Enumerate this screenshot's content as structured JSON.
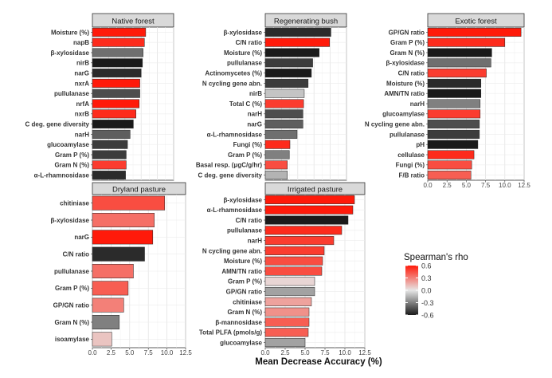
{
  "figure": {
    "xlabel": "Mean Decrease Accuracy (%)",
    "legend": {
      "title": "Spearman's rho",
      "ticks": [
        "0.6",
        "0.3",
        "0.0",
        "-0.3",
        "-0.6"
      ],
      "tick_values": [
        0.6,
        0.3,
        0.0,
        -0.3,
        -0.6
      ],
      "colors": {
        "neg": "#1a1a1a",
        "mid": "#e6e6e6",
        "pos": "#ff1a0a"
      },
      "range": [
        -0.6,
        0.6
      ]
    },
    "x_ticks": [
      "0.0",
      "2.5",
      "5.0",
      "7.5",
      "10.0",
      "12.5"
    ],
    "x_tick_values": [
      0,
      2.5,
      5,
      7.5,
      10,
      12.5
    ],
    "xlim": [
      0,
      12.5
    ]
  },
  "chart_data": [
    {
      "type": "bar",
      "title": "Native forest",
      "orientation": "horizontal",
      "categories": [
        "Moisture (%)",
        "napB",
        "β-xylosidase",
        "nirB",
        "narG",
        "nxrA",
        "pullulanase",
        "nrfA",
        "nxrB",
        "C deg. gene diversity",
        "narH",
        "glucoamylase",
        "Gram P (%)",
        "Gram N (%)",
        "α-L-rhamnosidase"
      ],
      "values": [
        8.2,
        8.0,
        7.8,
        7.7,
        7.5,
        7.3,
        7.3,
        7.2,
        6.7,
        6.3,
        5.8,
        5.4,
        5.2,
        5.2,
        5.1
      ],
      "rho": [
        0.6,
        0.55,
        -0.35,
        -0.6,
        -0.55,
        0.6,
        -0.45,
        0.6,
        0.55,
        -0.6,
        -0.4,
        -0.5,
        -0.5,
        0.5,
        -0.55
      ]
    },
    {
      "type": "bar",
      "title": "Regenerating bush",
      "orientation": "horizontal",
      "categories": [
        "β-xylosidase",
        "C/N ratio",
        "Moisture (%)",
        "pullulanase",
        "Actinomycetes (%)",
        "N cycling gene abn.",
        "nirB",
        "Total C (%)",
        "narH",
        "narG",
        "α-L-rhamnosidase",
        "Fungi (%)",
        "Gram P (%)",
        "Basal resp. (μgC/g/hr)",
        "C deg. gene diversity"
      ],
      "values": [
        10.1,
        9.9,
        8.3,
        7.3,
        7.1,
        6.6,
        6.0,
        5.9,
        5.8,
        5.8,
        4.9,
        3.8,
        3.7,
        3.4,
        3.4
      ],
      "rho": [
        -0.55,
        0.6,
        -0.6,
        -0.5,
        -0.6,
        -0.5,
        -0.1,
        0.5,
        -0.45,
        -0.4,
        -0.35,
        0.55,
        -0.3,
        0.45,
        -0.15
      ]
    },
    {
      "type": "bar",
      "title": "Exotic forest",
      "orientation": "horizontal",
      "categories": [
        "GP/GN ratio",
        "Gram P (%)",
        "Gram N (%)",
        "β-xylosidase",
        "C/N ratio",
        "Moisture (%)",
        "AMN/TN ratio",
        "narH",
        "glucoamylase",
        "N cycling gene abn.",
        "pullulanase",
        "pH",
        "cellulase",
        "Fungi (%)",
        "F/B ratio"
      ],
      "values": [
        12.1,
        10.0,
        8.3,
        8.2,
        7.6,
        6.9,
        6.9,
        6.8,
        6.8,
        6.7,
        6.7,
        6.5,
        6.0,
        5.7,
        5.6
      ],
      "rho": [
        0.6,
        0.55,
        -0.6,
        -0.35,
        0.5,
        -0.55,
        -0.6,
        -0.3,
        0.5,
        -0.45,
        -0.5,
        -0.6,
        0.55,
        0.45,
        0.4
      ]
    },
    {
      "type": "bar",
      "title": "Dryland pasture",
      "orientation": "horizontal",
      "categories": [
        "chitiniase",
        "β-xylosidase",
        "narG",
        "C/N ratio",
        "pullulanase",
        "Gram P (%)",
        "GP/GN ratio",
        "Gram N (%)",
        "isoamylase"
      ],
      "values": [
        9.7,
        8.3,
        8.1,
        7.0,
        5.5,
        4.8,
        4.2,
        3.6,
        2.6
      ],
      "rho": [
        0.45,
        0.35,
        0.6,
        -0.55,
        0.35,
        0.4,
        0.3,
        -0.3,
        0.1
      ]
    },
    {
      "type": "bar",
      "title": "Irrigated pasture",
      "orientation": "horizontal",
      "categories": [
        "β-xylosidase",
        "α-L-rhamnosidase",
        "C/N ratio",
        "pullulanase",
        "narH",
        "N cycling gene abn.",
        "Moisture (%)",
        "AMN/TN ratio",
        "Gram P (%)",
        "GP/GN ratio",
        "chitiniase",
        "Gram N (%)",
        "β-mannosidase",
        "Total PLFA (pmols/g)",
        "glucoamylase"
      ],
      "values": [
        11.2,
        11.0,
        10.4,
        9.6,
        8.6,
        7.4,
        7.2,
        7.1,
        6.2,
        6.2,
        5.8,
        5.5,
        5.5,
        5.4,
        5.0
      ],
      "rho": [
        0.65,
        0.65,
        -0.6,
        0.55,
        0.5,
        0.5,
        0.45,
        0.45,
        0.05,
        -0.2,
        0.2,
        0.25,
        0.4,
        0.4,
        -0.2
      ]
    }
  ]
}
